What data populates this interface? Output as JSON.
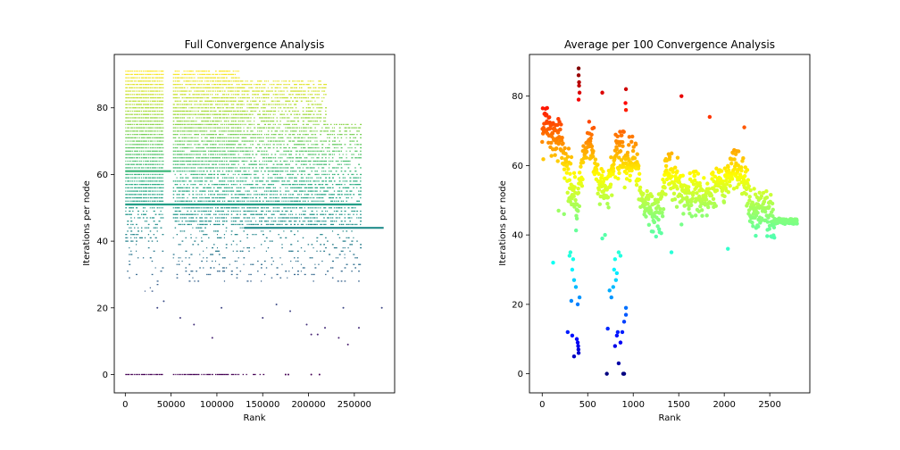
{
  "figure": {
    "background": "#ffffff",
    "axis_color": "#000000"
  },
  "chart_data": [
    {
      "type": "scatter",
      "title": "Full Convergence Analysis",
      "xlabel": "Rank",
      "ylabel": "Iterations per node",
      "xlim": [
        -12000,
        294000
      ],
      "ylim": [
        -5.5,
        96
      ],
      "xticks": [
        0,
        50000,
        100000,
        150000,
        200000,
        250000
      ],
      "yticks": [
        0,
        20,
        40,
        60,
        80
      ],
      "colormap": "viridis",
      "color_range": [
        0,
        91
      ],
      "marker_size": "small",
      "bands": [
        {
          "x": [
            0,
            42000
          ],
          "y": [
            0
          ],
          "density": 1.0
        },
        {
          "x": [
            52000,
            125000
          ],
          "y": [
            0
          ],
          "density": 0.85
        },
        {
          "x": [
            128000,
            152000
          ],
          "y": [
            0
          ],
          "density": 0.5
        },
        {
          "x": [
            0,
            42000
          ],
          "y": [
            51,
            91
          ],
          "density": 1.0
        },
        {
          "x": [
            0,
            42000
          ],
          "y": [
            40,
            50
          ],
          "density": 0.45
        },
        {
          "x": [
            0,
            42000
          ],
          "y": [
            25,
            39
          ],
          "density": 0.12
        },
        {
          "x": [
            52000,
            125000
          ],
          "y": [
            62,
            91
          ],
          "density": 0.9
        },
        {
          "x": [
            52000,
            125000
          ],
          "y": [
            45,
            61
          ],
          "density": 0.75
        },
        {
          "x": [
            52000,
            125000
          ],
          "y": [
            28,
            44
          ],
          "density": 0.2
        },
        {
          "x": [
            125000,
            220000
          ],
          "y": [
            44,
            88
          ],
          "density": 0.7
        },
        {
          "x": [
            125000,
            220000
          ],
          "y": [
            28,
            43
          ],
          "density": 0.15
        },
        {
          "x": [
            220000,
            258000
          ],
          "y": [
            44,
            75
          ],
          "density": 0.55
        },
        {
          "x": [
            220000,
            258000
          ],
          "y": [
            28,
            43
          ],
          "density": 0.18
        }
      ],
      "rows": [
        {
          "y": 44,
          "x": [
            130000,
            282000
          ]
        },
        {
          "y": 61,
          "x": [
            0,
            50000
          ]
        },
        {
          "y": 51,
          "x": [
            0,
            258000
          ]
        }
      ],
      "points": [
        [
          35000,
          20
        ],
        [
          42000,
          22
        ],
        [
          60000,
          17
        ],
        [
          75000,
          15
        ],
        [
          95000,
          11
        ],
        [
          105000,
          20
        ],
        [
          150000,
          17
        ],
        [
          165000,
          21
        ],
        [
          180000,
          19
        ],
        [
          198000,
          15
        ],
        [
          203000,
          12
        ],
        [
          210000,
          12
        ],
        [
          218000,
          14
        ],
        [
          233000,
          11
        ],
        [
          238000,
          20
        ],
        [
          243000,
          9
        ],
        [
          255000,
          14
        ],
        [
          280000,
          20
        ],
        [
          175000,
          0
        ],
        [
          178000,
          0
        ],
        [
          203000,
          0
        ],
        [
          212000,
          0
        ]
      ]
    },
    {
      "type": "scatter",
      "title": "Average per 100 Convergence Analysis",
      "xlabel": "Rank",
      "ylabel": "Iterations per node",
      "xlim": [
        -140,
        2940
      ],
      "ylim": [
        -5.5,
        92
      ],
      "xticks": [
        0,
        500,
        1000,
        1500,
        2000,
        2500
      ],
      "yticks": [
        0,
        20,
        40,
        60,
        80
      ],
      "colormap": "jet",
      "color_range": [
        0,
        88
      ],
      "marker_size": "medium",
      "curve": [
        [
          0,
          70
        ],
        [
          50,
          72
        ],
        [
          100,
          68
        ],
        [
          200,
          66
        ],
        [
          280,
          58
        ],
        [
          330,
          54
        ],
        [
          380,
          48
        ],
        [
          430,
          58
        ],
        [
          500,
          67
        ],
        [
          560,
          65
        ],
        [
          620,
          55
        ],
        [
          680,
          52
        ],
        [
          720,
          52
        ],
        [
          780,
          62
        ],
        [
          850,
          64
        ],
        [
          920,
          60
        ],
        [
          1000,
          62
        ],
        [
          1050,
          58
        ],
        [
          1100,
          50
        ],
        [
          1150,
          48
        ],
        [
          1220,
          47
        ],
        [
          1300,
          47
        ],
        [
          1380,
          60
        ],
        [
          1450,
          56
        ],
        [
          1520,
          53
        ],
        [
          1600,
          52
        ],
        [
          1700,
          52
        ],
        [
          1800,
          50
        ],
        [
          1900,
          52
        ],
        [
          2000,
          55
        ],
        [
          2100,
          60
        ],
        [
          2200,
          58
        ],
        [
          2280,
          50
        ],
        [
          2330,
          47
        ],
        [
          2400,
          46
        ],
        [
          2480,
          45
        ],
        [
          2560,
          44
        ],
        [
          2600,
          44
        ],
        [
          2800,
          44
        ]
      ],
      "flat_tail": {
        "y": 44,
        "x": [
          2550,
          2800
        ]
      },
      "points": [
        [
          400,
          88
        ],
        [
          400,
          86
        ],
        [
          405,
          84
        ],
        [
          405,
          83
        ],
        [
          410,
          81
        ],
        [
          400,
          79
        ],
        [
          660,
          81
        ],
        [
          920,
          82
        ],
        [
          915,
          78
        ],
        [
          920,
          76
        ],
        [
          1530,
          80
        ],
        [
          1840,
          74
        ],
        [
          2220,
          71
        ],
        [
          30,
          75
        ],
        [
          380,
          10
        ],
        [
          390,
          9
        ],
        [
          395,
          8
        ],
        [
          398,
          7
        ],
        [
          400,
          6
        ],
        [
          350,
          5
        ],
        [
          330,
          11
        ],
        [
          280,
          12
        ],
        [
          320,
          21
        ],
        [
          350,
          27
        ],
        [
          370,
          25
        ],
        [
          390,
          20
        ],
        [
          410,
          22
        ],
        [
          330,
          30
        ],
        [
          340,
          33
        ],
        [
          300,
          34
        ],
        [
          310,
          35
        ],
        [
          720,
          13
        ],
        [
          710,
          0
        ],
        [
          800,
          8
        ],
        [
          820,
          11
        ],
        [
          830,
          12
        ],
        [
          840,
          3
        ],
        [
          860,
          9
        ],
        [
          880,
          12
        ],
        [
          900,
          0
        ],
        [
          890,
          0
        ],
        [
          920,
          17
        ],
        [
          920,
          19
        ],
        [
          900,
          15
        ],
        [
          780,
          25
        ],
        [
          790,
          30
        ],
        [
          800,
          33
        ],
        [
          810,
          27
        ],
        [
          820,
          29
        ],
        [
          840,
          35
        ],
        [
          860,
          34
        ],
        [
          760,
          22
        ],
        [
          740,
          24
        ],
        [
          120,
          32
        ],
        [
          180,
          47
        ],
        [
          240,
          46
        ],
        [
          660,
          39
        ],
        [
          690,
          40
        ],
        [
          1420,
          35
        ],
        [
          1530,
          43
        ],
        [
          2040,
          36
        ],
        [
          2350,
          42
        ],
        [
          1180,
          48
        ]
      ]
    }
  ]
}
